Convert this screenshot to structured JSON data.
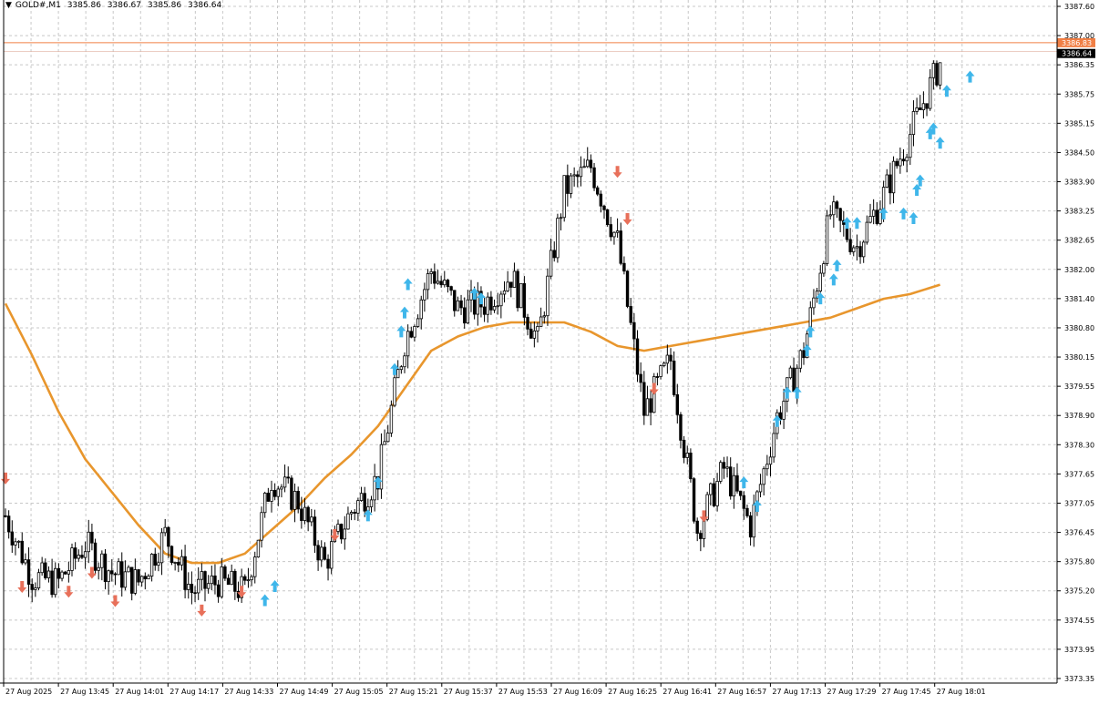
{
  "header": {
    "symbol": "GOLD#,M1",
    "open": "3385.86",
    "high": "3386.67",
    "low": "3385.86",
    "close": "3386.64"
  },
  "price_tags": {
    "ask": "3386.83",
    "bid": "3386.64"
  },
  "colors": {
    "background": "#ffffff",
    "grid": "#c8c8c8",
    "candle": "#000000",
    "ma": "#e8962d",
    "buy_arrow": "#3fb6ea",
    "sell_arrow": "#e8705a",
    "ask_line": "#f07f45",
    "bid_tag": "#000000"
  },
  "chart_data": {
    "type": "line",
    "y_ticks": [
      "3387.60",
      "3387.00",
      "3386.35",
      "3385.75",
      "3385.15",
      "3384.50",
      "3383.90",
      "3383.25",
      "3382.65",
      "3382.00",
      "3381.40",
      "3380.80",
      "3380.15",
      "3379.55",
      "3378.90",
      "3378.30",
      "3377.65",
      "3377.05",
      "3376.45",
      "3375.80",
      "3375.20",
      "3374.55",
      "3373.95",
      "3373.35"
    ],
    "x_ticks": [
      "27 Aug 2025",
      "27 Aug 13:45",
      "27 Aug 14:01",
      "27 Aug 14:17",
      "27 Aug 14:33",
      "27 Aug 14:49",
      "27 Aug 15:05",
      "27 Aug 15:21",
      "27 Aug 15:37",
      "27 Aug 15:53",
      "27 Aug 16:09",
      "27 Aug 16:25",
      "27 Aug 16:41",
      "27 Aug 16:57",
      "27 Aug 17:13",
      "27 Aug 17:29",
      "27 Aug 17:45",
      "27 Aug 18:01"
    ],
    "ylim": [
      3373.35,
      3387.6
    ],
    "grid": true,
    "series": [
      {
        "type": "line",
        "x_index": [
          0,
          8,
          16,
          24,
          32,
          40,
          48,
          56,
          64,
          72,
          80,
          88,
          96,
          104,
          112,
          120,
          128,
          136,
          144,
          152,
          160,
          168,
          176,
          184,
          192,
          200,
          208,
          216,
          224,
          232,
          240,
          248,
          256,
          264,
          272,
          281
        ],
        "values": [
          3381.3,
          3380.2,
          3379.0,
          3378.0,
          3377.3,
          3376.6,
          3376.0,
          3375.8,
          3375.8,
          3376.0,
          3376.5,
          3377.0,
          3377.6,
          3378.1,
          3378.7,
          3379.5,
          3380.3,
          3380.6,
          3380.8,
          3380.9,
          3380.9,
          3380.9,
          3380.7,
          3380.4,
          3380.3,
          3380.4,
          3380.5,
          3380.6,
          3380.7,
          3380.8,
          3380.9,
          3381.0,
          3381.2,
          3381.4,
          3381.5,
          3381.7
        ]
      },
      {
        "type": "candlestick",
        "anchor_index": [
          0,
          8,
          16,
          24,
          32,
          40,
          48,
          56,
          64,
          72,
          80,
          88,
          96,
          104,
          112,
          120,
          128,
          136,
          144,
          152,
          160,
          168,
          176,
          184,
          192,
          200,
          208,
          216,
          224,
          232,
          240,
          248,
          256,
          264,
          272,
          281
        ],
        "anchor_close": [
          3376.8,
          3375.5,
          3375.4,
          3376.2,
          3375.6,
          3375.4,
          3376.4,
          3375.2,
          3375.4,
          3375.2,
          3377.6,
          3377.1,
          3375.8,
          3376.9,
          3377.6,
          3380.5,
          3382.0,
          3381.2,
          3381.3,
          3381.9,
          3380.5,
          3383.7,
          3384.2,
          3382.6,
          3379.0,
          3380.1,
          3376.5,
          3377.8,
          3376.6,
          3378.9,
          3380.3,
          3383.2,
          3382.5,
          3383.6,
          3384.9,
          3386.4
        ],
        "noise": 0.35
      }
    ],
    "buy_signals": [
      {
        "x_index": 78,
        "value": 3375.0
      },
      {
        "x_index": 81,
        "value": 3375.3
      },
      {
        "x_index": 109,
        "value": 3376.8
      },
      {
        "x_index": 112,
        "value": 3377.5
      },
      {
        "x_index": 117,
        "value": 3379.9
      },
      {
        "x_index": 119,
        "value": 3380.7
      },
      {
        "x_index": 120,
        "value": 3381.1
      },
      {
        "x_index": 121,
        "value": 3381.7
      },
      {
        "x_index": 141,
        "value": 3381.5
      },
      {
        "x_index": 143,
        "value": 3381.4
      },
      {
        "x_index": 222,
        "value": 3377.5
      },
      {
        "x_index": 226,
        "value": 3377.0
      },
      {
        "x_index": 232,
        "value": 3378.8
      },
      {
        "x_index": 235,
        "value": 3379.4
      },
      {
        "x_index": 238,
        "value": 3379.4
      },
      {
        "x_index": 241,
        "value": 3380.3
      },
      {
        "x_index": 242,
        "value": 3380.7
      },
      {
        "x_index": 245,
        "value": 3381.4
      },
      {
        "x_index": 249,
        "value": 3381.8
      },
      {
        "x_index": 250,
        "value": 3382.1
      },
      {
        "x_index": 253,
        "value": 3383.0
      },
      {
        "x_index": 256,
        "value": 3383.0
      },
      {
        "x_index": 264,
        "value": 3383.2
      },
      {
        "x_index": 270,
        "value": 3383.2
      },
      {
        "x_index": 273,
        "value": 3383.1
      },
      {
        "x_index": 274,
        "value": 3383.7
      },
      {
        "x_index": 275,
        "value": 3383.9
      },
      {
        "x_index": 278,
        "value": 3384.9
      },
      {
        "x_index": 279,
        "value": 3385.0
      },
      {
        "x_index": 281,
        "value": 3384.7
      },
      {
        "x_index": 283,
        "value": 3385.8
      },
      {
        "x_index": 290,
        "value": 3386.1
      }
    ],
    "sell_signals": [
      {
        "x_index": 0,
        "value": 3377.6
      },
      {
        "x_index": 5,
        "value": 3375.3
      },
      {
        "x_index": 19,
        "value": 3375.2
      },
      {
        "x_index": 26,
        "value": 3375.6
      },
      {
        "x_index": 33,
        "value": 3375.0
      },
      {
        "x_index": 59,
        "value": 3374.8
      },
      {
        "x_index": 71,
        "value": 3375.2
      },
      {
        "x_index": 99,
        "value": 3376.4
      },
      {
        "x_index": 184,
        "value": 3384.1
      },
      {
        "x_index": 187,
        "value": 3383.1
      },
      {
        "x_index": 195,
        "value": 3379.5
      },
      {
        "x_index": 210,
        "value": 3376.8
      }
    ]
  }
}
